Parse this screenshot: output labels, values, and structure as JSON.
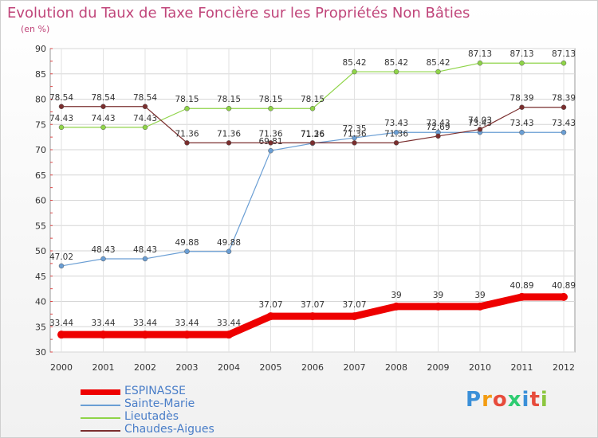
{
  "title": "Evolution du Taux de Taxe Foncière sur les Propriétés Non Bâties",
  "unit": "(en %)",
  "logo": {
    "letters": [
      "P",
      "r",
      "o",
      "x",
      "i",
      "t",
      "i"
    ],
    "colors": [
      "#3a8fd8",
      "#f39c12",
      "#e74c3c",
      "#2ecc71",
      "#3a8fd8",
      "#e74c3c",
      "#8cc63f"
    ]
  },
  "chart_data": {
    "type": "line",
    "x": [
      "2000",
      "2001",
      "2002",
      "2003",
      "2004",
      "2005",
      "2006",
      "2007",
      "2008",
      "2009",
      "2010",
      "2011",
      "2012"
    ],
    "ylim": [
      30,
      90
    ],
    "yticks": [
      30,
      35,
      40,
      45,
      50,
      55,
      60,
      65,
      70,
      75,
      80,
      85,
      90
    ],
    "grid": true,
    "legend_position": "bottom-left",
    "series": [
      {
        "name": "ESPINASSE",
        "color": "#ee0000",
        "width": 9,
        "values": [
          33.44,
          33.44,
          33.44,
          33.44,
          33.44,
          37.07,
          37.07,
          37.07,
          39,
          39,
          39,
          40.89,
          40.89
        ],
        "labels": [
          "33.44",
          "33.44",
          "33.44",
          "33.44",
          "33.44",
          "37.07",
          "37.07",
          "37.07",
          "39",
          "39",
          "39",
          "40.89",
          "40.89"
        ]
      },
      {
        "name": "Sainte-Marie",
        "color": "#6a9ed4",
        "width": 1.2,
        "values": [
          47.02,
          48.43,
          48.43,
          49.88,
          49.88,
          69.81,
          71.26,
          72.35,
          73.43,
          73.43,
          73.43,
          73.43,
          73.43
        ],
        "labels": [
          "47.02",
          "48.43",
          "48.43",
          "49.88",
          "49.88",
          "69.81",
          "71.26",
          "72.35",
          "73.43",
          "73.43",
          "73.43",
          "73.43",
          "73.43"
        ]
      },
      {
        "name": "Lieutadès",
        "color": "#8fd448",
        "width": 1.2,
        "values": [
          74.43,
          74.43,
          74.43,
          78.15,
          78.15,
          78.15,
          78.15,
          85.42,
          85.42,
          85.42,
          87.13,
          87.13,
          87.13
        ],
        "labels": [
          "74.43",
          "74.43",
          "74.43",
          "78.15",
          "78.15",
          "78.15",
          "78.15",
          "85.42",
          "85.42",
          "85.42",
          "87.13",
          "87.13",
          "87.13"
        ]
      },
      {
        "name": "Chaudes-Aigues",
        "color": "#7a2e2e",
        "width": 1.2,
        "values": [
          78.54,
          78.54,
          78.54,
          71.36,
          71.36,
          71.36,
          71.36,
          71.36,
          71.36,
          72.69,
          74.03,
          78.39,
          78.39
        ],
        "labels": [
          "78.54",
          "78.54",
          "78.54",
          "71.36",
          "71.36",
          "71.36",
          "71.36",
          "71.36",
          "71.36",
          "72.69",
          "74.03",
          "78.39",
          "78.39"
        ]
      }
    ]
  }
}
